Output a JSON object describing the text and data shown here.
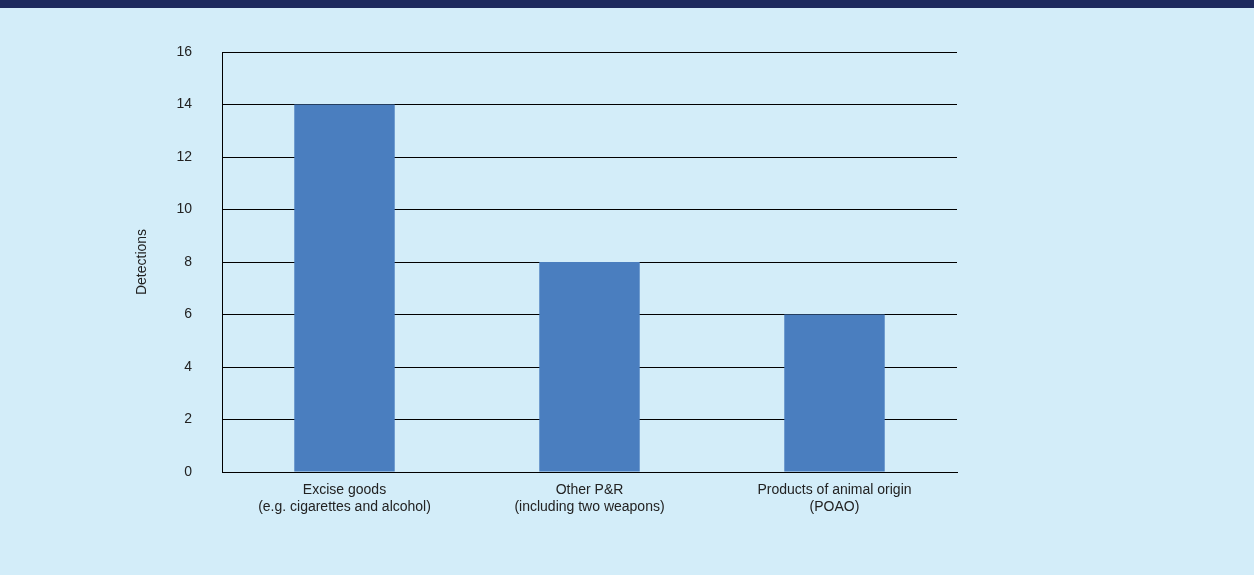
{
  "chart_data": {
    "type": "bar",
    "ylabel": "Detections",
    "categories": [
      "Excise goods\n(e.g. cigarettes and alcohol)",
      "Other P&R\n(including two weapons)",
      "Products of animal origin\n(POAO)"
    ],
    "values": [
      14,
      8,
      6
    ],
    "color": "#4a7ebf",
    "ylim": [
      0,
      16
    ],
    "yticks": [
      0,
      2,
      4,
      6,
      8,
      10,
      12,
      14,
      16
    ],
    "grid": "y",
    "legend": false
  }
}
